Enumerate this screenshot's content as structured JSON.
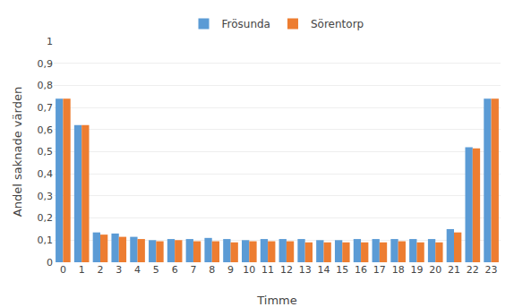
{
  "chart_data": {
    "type": "bar",
    "xlabel": "Timme",
    "ylabel": "Andel saknade värden",
    "categories": [
      "0",
      "1",
      "2",
      "3",
      "4",
      "5",
      "6",
      "7",
      "8",
      "9",
      "10",
      "11",
      "12",
      "13",
      "14",
      "15",
      "16",
      "17",
      "18",
      "19",
      "20",
      "21",
      "22",
      "23"
    ],
    "series": [
      {
        "name": "Frösunda",
        "color": "#5B9BD5",
        "values": [
          0.74,
          0.62,
          0.135,
          0.13,
          0.115,
          0.1,
          0.105,
          0.105,
          0.11,
          0.105,
          0.1,
          0.105,
          0.105,
          0.105,
          0.1,
          0.1,
          0.105,
          0.105,
          0.105,
          0.105,
          0.105,
          0.15,
          0.52,
          0.74
        ]
      },
      {
        "name": "Sörentorp",
        "color": "#ED7D31",
        "values": [
          0.74,
          0.62,
          0.125,
          0.115,
          0.105,
          0.095,
          0.1,
          0.095,
          0.095,
          0.09,
          0.095,
          0.095,
          0.095,
          0.09,
          0.09,
          0.09,
          0.09,
          0.09,
          0.095,
          0.09,
          0.09,
          0.135,
          0.515,
          0.74
        ]
      }
    ],
    "ylim": [
      0,
      1.0
    ],
    "yticks": [
      0,
      {
        "value": 0.1,
        "label": "0,1"
      },
      {
        "value": 0.2,
        "label": "0,2"
      },
      {
        "value": 0.3,
        "label": "0,3"
      },
      {
        "value": 0.4,
        "label": "0,4"
      },
      {
        "value": 0.5,
        "label": "0,5"
      },
      {
        "value": 0.6,
        "label": "0,6"
      },
      {
        "value": 0.7,
        "label": "0,7"
      },
      {
        "value": 0.8,
        "label": "0,8"
      },
      {
        "value": 0.9,
        "label": "0,9"
      },
      1
    ],
    "grid": true,
    "legend": "top"
  }
}
